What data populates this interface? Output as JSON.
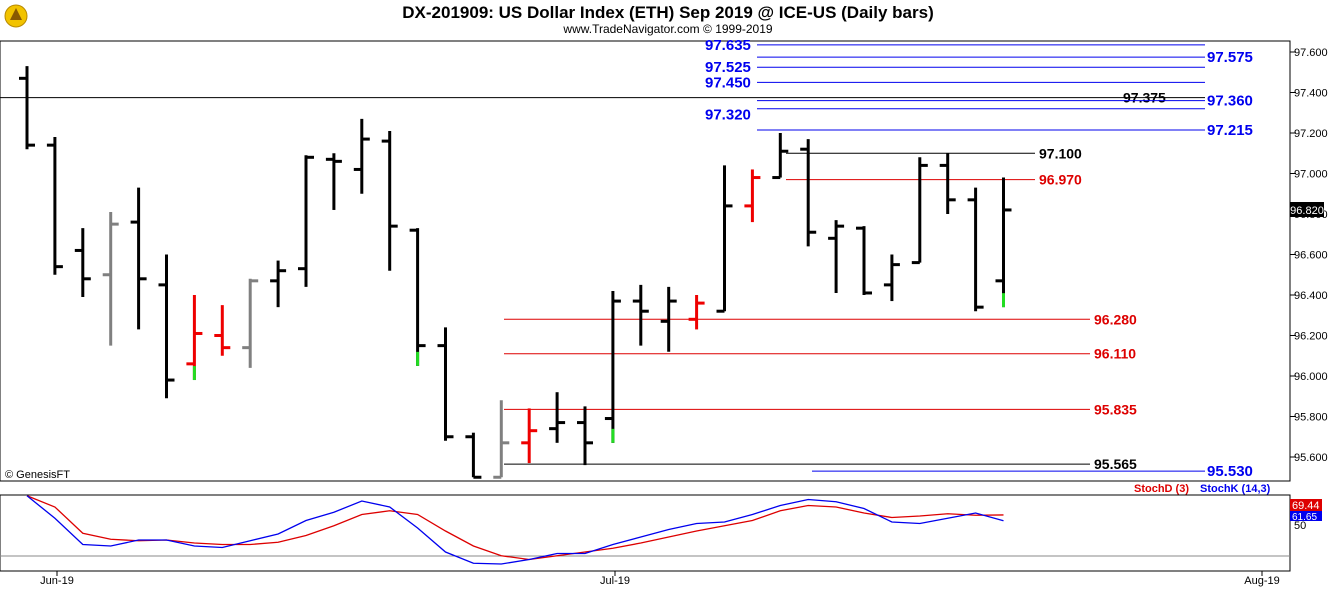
{
  "header": {
    "title": "DX-201909:  US Dollar Index (ETH) Sep 2019 @ ICE-US  (Daily bars)",
    "subtitle": "www.TradeNavigator.com © 1999-2019"
  },
  "watermark": "© GenesisFT",
  "chart_data": [
    {
      "type": "ohlc",
      "ylim": [
        95.5,
        97.68
      ],
      "y_ticks": [
        "97.600",
        "97.400",
        "97.200",
        "97.000",
        "96.800",
        "96.600",
        "96.400",
        "96.200",
        "96.000",
        "95.800",
        "95.600"
      ],
      "x_ticks": [
        "Jun-19",
        "Jul-19",
        "Aug-19"
      ],
      "last_price": {
        "label": "96.820",
        "value": 96.82
      },
      "bars": [
        {
          "o": 97.47,
          "h": 97.53,
          "l": 97.12,
          "c": 97.14,
          "color": "black"
        },
        {
          "o": 97.14,
          "h": 97.18,
          "l": 96.5,
          "c": 96.54,
          "color": "black"
        },
        {
          "o": 96.62,
          "h": 96.73,
          "l": 96.39,
          "c": 96.48,
          "color": "black"
        },
        {
          "o": 96.5,
          "h": 96.81,
          "l": 96.15,
          "c": 96.75,
          "color": "gray"
        },
        {
          "o": 96.76,
          "h": 96.93,
          "l": 96.23,
          "c": 96.48,
          "color": "black"
        },
        {
          "o": 96.45,
          "h": 96.6,
          "l": 95.89,
          "c": 95.98,
          "color": "black"
        },
        {
          "o": 96.06,
          "h": 96.4,
          "l": 95.98,
          "c": 96.21,
          "color": "red",
          "green_tail": true
        },
        {
          "o": 96.2,
          "h": 96.35,
          "l": 96.1,
          "c": 96.14,
          "color": "red"
        },
        {
          "o": 96.14,
          "h": 96.48,
          "l": 96.04,
          "c": 96.47,
          "color": "gray"
        },
        {
          "o": 96.47,
          "h": 96.57,
          "l": 96.34,
          "c": 96.52,
          "color": "black"
        },
        {
          "o": 96.53,
          "h": 97.09,
          "l": 96.44,
          "c": 97.08,
          "color": "black"
        },
        {
          "o": 97.07,
          "h": 97.1,
          "l": 96.82,
          "c": 97.06,
          "color": "black"
        },
        {
          "o": 97.02,
          "h": 97.27,
          "l": 96.9,
          "c": 97.17,
          "color": "black"
        },
        {
          "o": 97.16,
          "h": 97.21,
          "l": 96.52,
          "c": 96.74,
          "color": "black"
        },
        {
          "o": 96.72,
          "h": 96.73,
          "l": 96.05,
          "c": 96.15,
          "color": "black",
          "green_tail": true
        },
        {
          "o": 96.15,
          "h": 96.24,
          "l": 95.68,
          "c": 95.7,
          "color": "black"
        },
        {
          "o": 95.7,
          "h": 95.72,
          "l": 95.5,
          "c": 95.5,
          "color": "black"
        },
        {
          "o": 95.5,
          "h": 95.88,
          "l": 95.5,
          "c": 95.67,
          "color": "gray"
        },
        {
          "o": 95.67,
          "h": 95.84,
          "l": 95.57,
          "c": 95.73,
          "color": "red"
        },
        {
          "o": 95.74,
          "h": 95.92,
          "l": 95.67,
          "c": 95.77,
          "color": "black"
        },
        {
          "o": 95.77,
          "h": 95.85,
          "l": 95.56,
          "c": 95.67,
          "color": "black"
        },
        {
          "o": 95.79,
          "h": 96.42,
          "l": 95.67,
          "c": 96.37,
          "color": "black",
          "green_tail": true
        },
        {
          "o": 96.37,
          "h": 96.45,
          "l": 96.15,
          "c": 96.32,
          "color": "black"
        },
        {
          "o": 96.27,
          "h": 96.44,
          "l": 96.12,
          "c": 96.37,
          "color": "black"
        },
        {
          "o": 96.28,
          "h": 96.4,
          "l": 96.23,
          "c": 96.36,
          "color": "red"
        },
        {
          "o": 96.32,
          "h": 97.04,
          "l": 96.32,
          "c": 96.84,
          "color": "black"
        },
        {
          "o": 96.84,
          "h": 97.02,
          "l": 96.76,
          "c": 96.98,
          "color": "red"
        },
        {
          "o": 96.98,
          "h": 97.2,
          "l": 96.98,
          "c": 97.11,
          "color": "black"
        },
        {
          "o": 97.12,
          "h": 97.17,
          "l": 96.64,
          "c": 96.71,
          "color": "black"
        },
        {
          "o": 96.68,
          "h": 96.77,
          "l": 96.41,
          "c": 96.74,
          "color": "black"
        },
        {
          "o": 96.73,
          "h": 96.74,
          "l": 96.4,
          "c": 96.41,
          "color": "black"
        },
        {
          "o": 96.45,
          "h": 96.6,
          "l": 96.37,
          "c": 96.55,
          "color": "black"
        },
        {
          "o": 96.56,
          "h": 97.08,
          "l": 96.56,
          "c": 97.04,
          "color": "black"
        },
        {
          "o": 97.04,
          "h": 97.1,
          "l": 96.8,
          "c": 96.87,
          "color": "black"
        },
        {
          "o": 96.87,
          "h": 96.93,
          "l": 96.32,
          "c": 96.34,
          "color": "black"
        },
        {
          "o": 96.47,
          "h": 96.98,
          "l": 96.34,
          "c": 96.82,
          "color": "black",
          "green_tail": true
        }
      ],
      "levels": [
        {
          "value": 97.635,
          "label": "97.635",
          "color": "#0000ee",
          "side": "left"
        },
        {
          "value": 97.575,
          "label": "97.575",
          "color": "#0000ee",
          "side": "right"
        },
        {
          "value": 97.525,
          "label": "97.525",
          "color": "#0000ee",
          "side": "left"
        },
        {
          "value": 97.45,
          "label": "97.450",
          "color": "#0000ee",
          "side": "left"
        },
        {
          "value": 97.375,
          "label": "97.375",
          "color": "#000000",
          "side": "mid"
        },
        {
          "value": 97.36,
          "label": "97.360",
          "color": "#0000ee",
          "side": "right"
        },
        {
          "value": 97.32,
          "label": "97.320",
          "color": "#0000ee",
          "side": "left"
        },
        {
          "value": 97.215,
          "label": "97.215",
          "color": "#0000ee",
          "side": "right"
        },
        {
          "value": 97.1,
          "label": "97.100",
          "color": "#000000",
          "side": "mid"
        },
        {
          "value": 96.97,
          "label": "96.970",
          "color": "#dd0000",
          "side": "mid"
        },
        {
          "value": 96.28,
          "label": "96.280",
          "color": "#dd0000",
          "side": "mid"
        },
        {
          "value": 96.11,
          "label": "96.110",
          "color": "#dd0000",
          "side": "mid"
        },
        {
          "value": 95.835,
          "label": "95.835",
          "color": "#dd0000",
          "side": "mid"
        },
        {
          "value": 95.565,
          "label": "95.565",
          "color": "#000000",
          "side": "mid"
        },
        {
          "value": 95.53,
          "label": "95.530",
          "color": "#0000ee",
          "side": "right"
        }
      ]
    },
    {
      "type": "line",
      "ylim": [
        0,
        100
      ],
      "y_ticks": [
        "50"
      ],
      "legend": [
        "StochD (3)",
        "StochK (14,3)"
      ],
      "last_values": [
        "69.44",
        "61.65"
      ],
      "series": [
        {
          "name": "StochD (3)",
          "color": "#dd0000",
          "values": [
            95,
            80,
            45,
            37,
            35,
            36,
            32,
            30,
            30,
            33,
            42,
            55,
            70,
            75,
            70,
            48,
            28,
            15,
            10,
            15,
            20,
            25,
            32,
            40,
            48,
            55,
            62,
            75,
            82,
            80,
            72,
            66,
            68,
            71,
            69,
            69.44
          ]
        },
        {
          "name": "StochK (14,3)",
          "color": "#0000ee",
          "values": [
            95,
            65,
            30,
            28,
            36,
            36,
            28,
            26,
            35,
            44,
            62,
            73,
            88,
            80,
            52,
            20,
            5,
            4,
            10,
            18,
            18,
            30,
            40,
            50,
            58,
            60,
            70,
            82,
            90,
            87,
            78,
            60,
            58,
            65,
            72,
            61.65
          ]
        }
      ]
    }
  ]
}
